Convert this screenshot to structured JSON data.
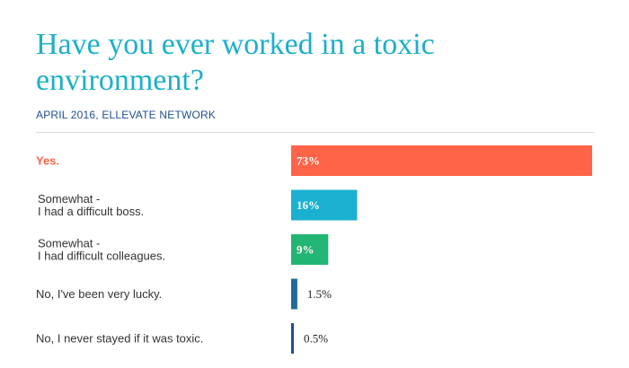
{
  "header": {
    "title": "Have you ever worked in a toxic environment?",
    "subtitle": "APRIL 2016, ELLEVATE NETWORK"
  },
  "chart_data": {
    "type": "bar",
    "orientation": "horizontal",
    "title": "Have you ever worked in a toxic environment?",
    "subtitle": "APRIL 2016, ELLEVATE NETWORK",
    "categories": [
      [
        "Yes."
      ],
      [
        "Somewhat -",
        "I had a difficult boss."
      ],
      [
        "Somewhat -",
        "I had difficult colleagues."
      ],
      [
        "No, I've been very lucky."
      ],
      [
        "No, I never stayed if it was toxic."
      ]
    ],
    "values": [
      73,
      16,
      9,
      1.5,
      0.5
    ],
    "value_labels": [
      "73%",
      "16%",
      "9%",
      "1.5%",
      "0.5%"
    ],
    "colors": [
      "#ff6448",
      "#1cb0d0",
      "#23b573",
      "#1f6b9a",
      "#1f4f8f"
    ],
    "highlight_color": "#ff6448",
    "xlim": [
      0,
      73
    ],
    "grid": false,
    "legend": "none"
  }
}
